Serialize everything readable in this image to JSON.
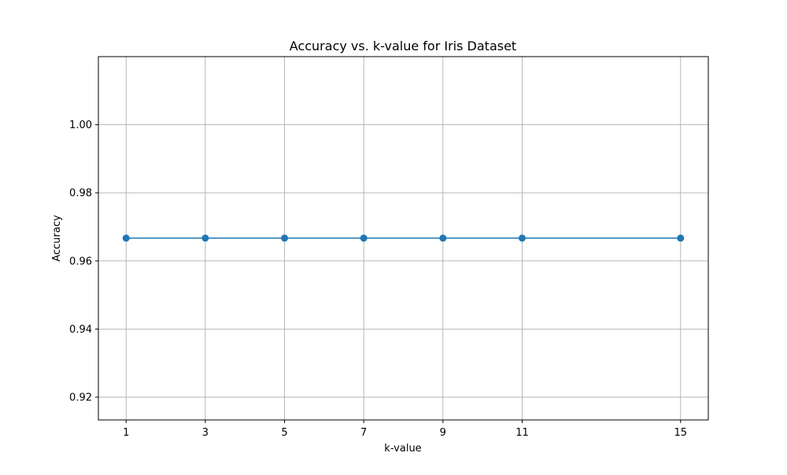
{
  "chart_data": {
    "type": "line",
    "title": "Accuracy vs. k-value for Iris Dataset",
    "xlabel": "k-value",
    "ylabel": "Accuracy",
    "x": [
      1,
      3,
      5,
      7,
      9,
      11,
      15
    ],
    "x_ticks": [
      "1",
      "3",
      "5",
      "7",
      "9",
      "11",
      "15"
    ],
    "y_ticks": [
      "0.92",
      "0.94",
      "0.96",
      "0.98",
      "1.00"
    ],
    "y_tick_values": [
      0.92,
      0.94,
      0.96,
      0.98,
      1.0
    ],
    "xlim": [
      0.3,
      15.7
    ],
    "ylim": [
      0.9133,
      1.02
    ],
    "grid": true,
    "legend": "none",
    "series": [
      {
        "values": [
          0.9667,
          0.9667,
          0.9667,
          0.9667,
          0.9667,
          0.9667,
          0.9667
        ],
        "color": "#1f77b4",
        "marker": "circle"
      }
    ]
  }
}
